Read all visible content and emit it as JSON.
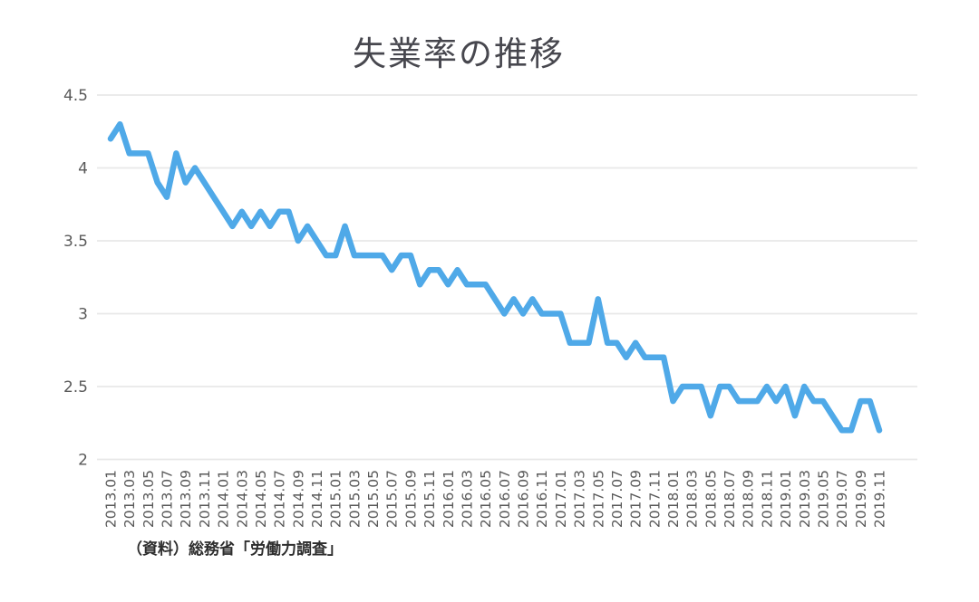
{
  "page": {
    "background": "#ffffff"
  },
  "chart_data": {
    "type": "line",
    "title": "失業率の推移",
    "source_note": "（資料）総務省「労働力調査」",
    "legend": "none",
    "grid": true,
    "ylim": [
      2,
      4.5
    ],
    "yticks": [
      4.5,
      4,
      3.5,
      3,
      2.5,
      2
    ],
    "ytick_labels": [
      "4.5",
      "4",
      "3.5",
      "3",
      "2.5",
      "2"
    ],
    "x_tick_every": 2,
    "line_color": "#4FA9E8",
    "grid_color": "#E8E8E8",
    "axis_text_color": "#595959",
    "title_color": "#47474E",
    "x": [
      "2013.01",
      "2013.02",
      "2013.03",
      "2013.04",
      "2013.05",
      "2013.06",
      "2013.07",
      "2013.08",
      "2013.09",
      "2013.10",
      "2013.11",
      "2013.12",
      "2014.01",
      "2014.02",
      "2014.03",
      "2014.04",
      "2014.05",
      "2014.06",
      "2014.07",
      "2014.08",
      "2014.09",
      "2014.10",
      "2014.11",
      "2014.12",
      "2015.01",
      "2015.02",
      "2015.03",
      "2015.04",
      "2015.05",
      "2015.06",
      "2015.07",
      "2015.08",
      "2015.09",
      "2015.10",
      "2015.11",
      "2015.12",
      "2016.01",
      "2016.02",
      "2016.03",
      "2016.04",
      "2016.05",
      "2016.06",
      "2016.07",
      "2016.08",
      "2016.09",
      "2016.10",
      "2016.11",
      "2016.12",
      "2017.01",
      "2017.02",
      "2017.03",
      "2017.04",
      "2017.05",
      "2017.06",
      "2017.07",
      "2017.08",
      "2017.09",
      "2017.10",
      "2017.11",
      "2017.12",
      "2018.01",
      "2018.02",
      "2018.03",
      "2018.04",
      "2018.05",
      "2018.06",
      "2018.07",
      "2018.08",
      "2018.09",
      "2018.10",
      "2018.11",
      "2018.12",
      "2019.01",
      "2019.02",
      "2019.03",
      "2019.04",
      "2019.05",
      "2019.06",
      "2019.07",
      "2019.08",
      "2019.09",
      "2019.10",
      "2019.11"
    ],
    "values": [
      4.2,
      4.3,
      4.1,
      4.1,
      4.1,
      3.9,
      3.8,
      4.1,
      3.9,
      4.0,
      3.9,
      3.8,
      3.7,
      3.6,
      3.7,
      3.6,
      3.7,
      3.6,
      3.7,
      3.7,
      3.5,
      3.6,
      3.5,
      3.4,
      3.4,
      3.6,
      3.4,
      3.4,
      3.4,
      3.4,
      3.3,
      3.4,
      3.4,
      3.2,
      3.3,
      3.3,
      3.2,
      3.3,
      3.2,
      3.2,
      3.2,
      3.1,
      3.0,
      3.1,
      3.0,
      3.1,
      3.0,
      3.0,
      3.0,
      2.8,
      2.8,
      2.8,
      3.1,
      2.8,
      2.8,
      2.7,
      2.8,
      2.7,
      2.7,
      2.7,
      2.4,
      2.5,
      2.5,
      2.5,
      2.3,
      2.5,
      2.5,
      2.4,
      2.4,
      2.4,
      2.5,
      2.4,
      2.5,
      2.3,
      2.5,
      2.4,
      2.4,
      2.3,
      2.2,
      2.2,
      2.4,
      2.4,
      2.2
    ]
  }
}
